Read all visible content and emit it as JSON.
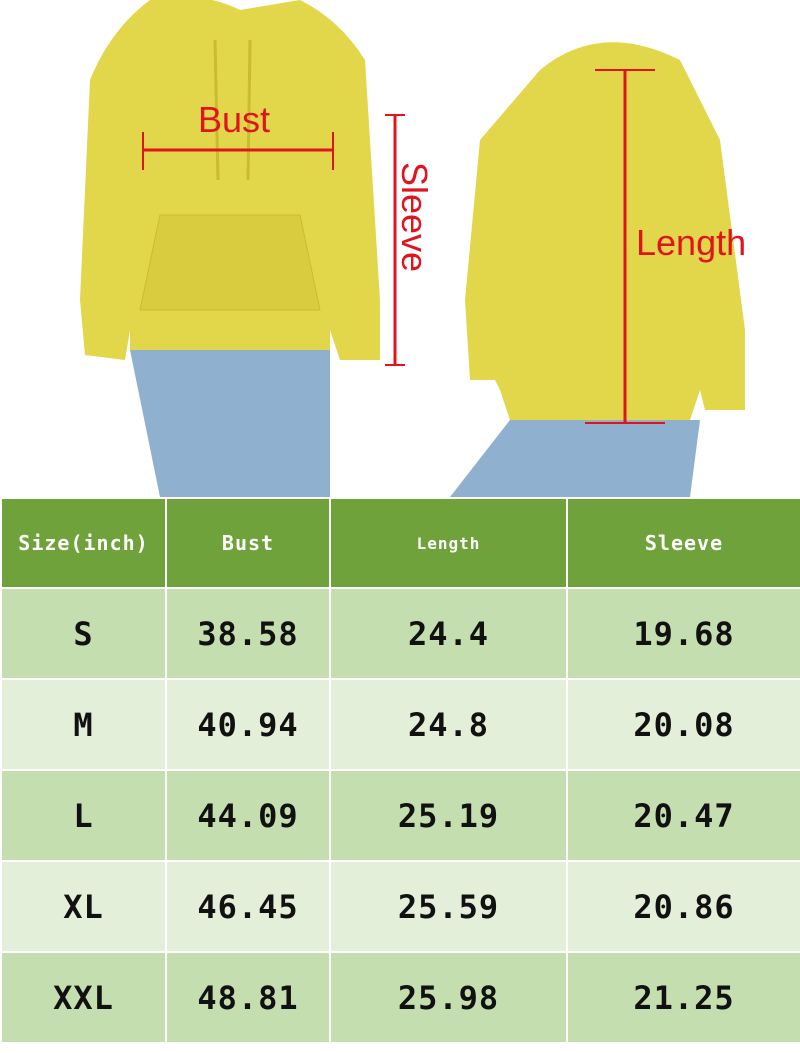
{
  "labels": {
    "bust": "Bust",
    "sleeve": "Sleeve",
    "length": "Length"
  },
  "colors": {
    "header": "#6fa23a",
    "row_odd": "#c5deaf",
    "row_even": "#e3efd9",
    "garment": "#e2d64a",
    "measure_line": "#e0141e"
  },
  "table": {
    "headers": [
      "Size(inch)",
      "Bust",
      "Length",
      "Sleeve"
    ],
    "rows": [
      [
        "S",
        "38.58",
        "24.4",
        "19.68"
      ],
      [
        "M",
        "40.94",
        "24.8",
        "20.08"
      ],
      [
        "L",
        "44.09",
        "25.19",
        "20.47"
      ],
      [
        "XL",
        "46.45",
        "25.59",
        "20.86"
      ],
      [
        "XXL",
        "48.81",
        "25.98",
        "21.25"
      ]
    ]
  }
}
